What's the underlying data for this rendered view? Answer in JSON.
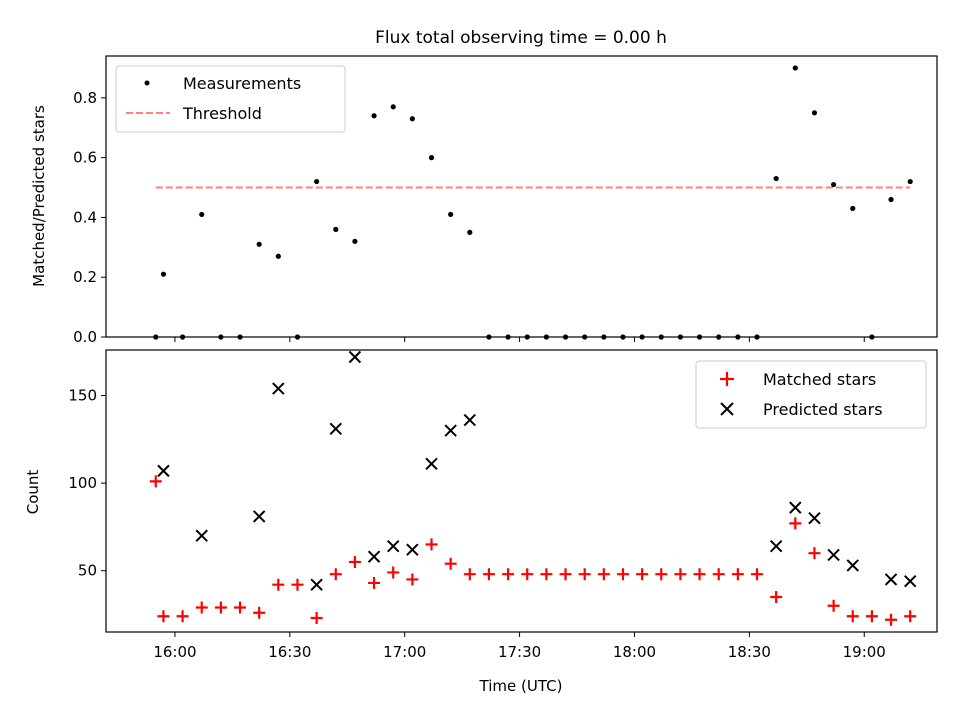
{
  "chart_data": [
    {
      "type": "scatter",
      "title": "Flux total observing time = 0.00 h",
      "xlabel": "",
      "ylabel": "Matched/Predicted stars",
      "ylim": [
        0,
        0.94
      ],
      "yticks": [
        "0.0",
        "0.2",
        "0.4",
        "0.6",
        "0.8"
      ],
      "ytick_values": [
        0,
        0.2,
        0.4,
        0.6,
        0.8
      ],
      "xlim": [
        "15:42",
        "19:19"
      ],
      "legend_position": "top-left",
      "series": [
        {
          "name": "Measurements",
          "marker": "dot",
          "color": "#000000",
          "x": [
            "15:55",
            "15:57",
            "16:02",
            "16:07",
            "16:12",
            "16:17",
            "16:22",
            "16:27",
            "16:32",
            "16:37",
            "16:42",
            "16:47",
            "16:52",
            "16:57",
            "17:02",
            "17:07",
            "17:12",
            "17:17",
            "17:22",
            "17:27",
            "17:32",
            "17:37",
            "17:42",
            "17:47",
            "17:52",
            "17:57",
            "18:02",
            "18:07",
            "18:12",
            "18:17",
            "18:22",
            "18:27",
            "18:32",
            "18:37",
            "18:42",
            "18:47",
            "18:52",
            "18:57",
            "19:02",
            "19:07",
            "19:12"
          ],
          "y": [
            0.0,
            0.21,
            0.0,
            0.41,
            0.0,
            0.0,
            0.31,
            0.27,
            0.0,
            0.52,
            0.36,
            0.32,
            0.74,
            0.77,
            0.73,
            0.6,
            0.41,
            0.35,
            0.0,
            0.0,
            0.0,
            0.0,
            0.0,
            0.0,
            0.0,
            0.0,
            0.0,
            0.0,
            0.0,
            0.0,
            0.0,
            0.0,
            0.0,
            0.53,
            0.9,
            0.75,
            0.51,
            0.43,
            0.0,
            0.46,
            0.52
          ]
        },
        {
          "name": "Threshold",
          "marker": "dashed-line",
          "color": "#ff8080",
          "x": [
            "15:55",
            "19:12"
          ],
          "y": [
            0.5,
            0.5
          ]
        }
      ]
    },
    {
      "type": "scatter",
      "title": "",
      "xlabel": "Time (UTC)",
      "ylabel": "Count",
      "ylim": [
        15,
        176
      ],
      "yticks": [
        "50",
        "100",
        "150"
      ],
      "ytick_values": [
        50,
        100,
        150
      ],
      "xlim": [
        "15:42",
        "19:19"
      ],
      "xticks": [
        "16:00",
        "16:30",
        "17:00",
        "17:30",
        "18:00",
        "18:30",
        "19:00"
      ],
      "legend_position": "top-right",
      "series": [
        {
          "name": "Matched stars",
          "marker": "plus",
          "color": "#ff0000",
          "x": [
            "15:55",
            "15:57",
            "16:02",
            "16:07",
            "16:12",
            "16:17",
            "16:22",
            "16:27",
            "16:32",
            "16:37",
            "16:42",
            "16:47",
            "16:52",
            "16:57",
            "17:02",
            "17:07",
            "17:12",
            "17:17",
            "17:22",
            "17:27",
            "17:32",
            "17:37",
            "17:42",
            "17:47",
            "17:52",
            "17:57",
            "18:02",
            "18:07",
            "18:12",
            "18:17",
            "18:22",
            "18:27",
            "18:32",
            "18:37",
            "18:42",
            "18:47",
            "18:52",
            "18:57",
            "19:02",
            "19:07",
            "19:12"
          ],
          "y": [
            101,
            24,
            24,
            29,
            29,
            29,
            26,
            42,
            42,
            23,
            48,
            55,
            43,
            49,
            45,
            65,
            54,
            48,
            48,
            48,
            48,
            48,
            48,
            48,
            48,
            48,
            48,
            48,
            48,
            48,
            48,
            48,
            48,
            35,
            77,
            60,
            30,
            24,
            24,
            22,
            24
          ]
        },
        {
          "name": "Predicted stars",
          "marker": "x",
          "color": "#000000",
          "x": [
            "15:57",
            "16:07",
            "16:22",
            "16:27",
            "16:37",
            "16:42",
            "16:47",
            "16:52",
            "16:57",
            "17:02",
            "17:07",
            "17:12",
            "17:17",
            "18:37",
            "18:42",
            "18:47",
            "18:52",
            "18:57",
            "19:07",
            "19:12"
          ],
          "y": [
            107,
            70,
            81,
            154,
            42,
            131,
            172,
            58,
            64,
            62,
            111,
            130,
            136,
            64,
            86,
            80,
            59,
            53,
            45,
            44
          ]
        }
      ]
    }
  ]
}
